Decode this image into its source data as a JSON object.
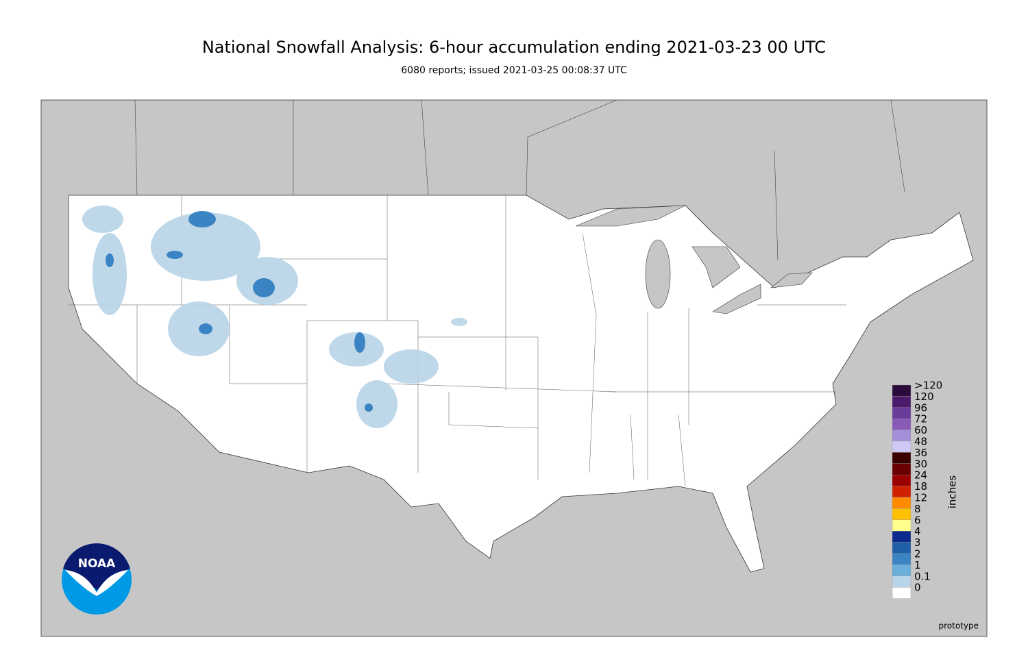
{
  "header": {
    "title": "National Snowfall Analysis: 6-hour accumulation ending 2021-03-23 00 UTC",
    "subtitle": "6080 reports; issued 2021-03-25 00:08:37 UTC"
  },
  "legend": {
    "title": "inches",
    "entries": [
      {
        "label": ">120",
        "color": "#2a0b3b"
      },
      {
        "label": 120,
        "color": "#4b1a6b"
      },
      {
        "label": 96,
        "color": "#6b3d9a"
      },
      {
        "label": 72,
        "color": "#8a5ab8"
      },
      {
        "label": 60,
        "color": "#a58fd8"
      },
      {
        "label": 48,
        "color": "#cfc8f5"
      },
      {
        "label": 36,
        "color": "#3a0000"
      },
      {
        "label": 30,
        "color": "#6a0000"
      },
      {
        "label": 24,
        "color": "#9a0000"
      },
      {
        "label": 18,
        "color": "#d02000"
      },
      {
        "label": 12,
        "color": "#ff8c00"
      },
      {
        "label": 8,
        "color": "#ffc000"
      },
      {
        "label": 6,
        "color": "#ffff8c"
      },
      {
        "label": 4,
        "color": "#0c2a8c"
      },
      {
        "label": 3,
        "color": "#1f5fa8"
      },
      {
        "label": 2,
        "color": "#3b84c4"
      },
      {
        "label": 1,
        "color": "#6aaedb"
      },
      {
        "label": 0.1,
        "color": "#b8d4e8"
      },
      {
        "label": 0,
        "color": "#ffffff"
      }
    ]
  },
  "logo": {
    "text": "NOAA"
  },
  "footer": {
    "note": "prototype"
  }
}
